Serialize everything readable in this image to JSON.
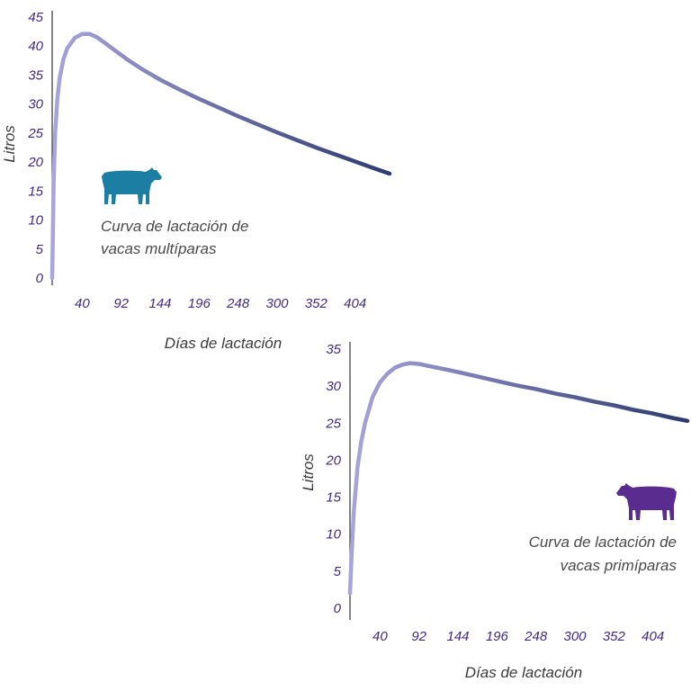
{
  "chart_data": [
    {
      "type": "line",
      "ylabel": "Litros",
      "xlabel": "Días de lactación",
      "y_ticks": [
        0,
        5,
        10,
        15,
        20,
        25,
        30,
        35,
        40,
        45
      ],
      "x_ticks": [
        40,
        92,
        144,
        196,
        248,
        300,
        352,
        404
      ],
      "ylim": [
        0,
        45
      ],
      "xlim": [
        0,
        450
      ],
      "grid": false,
      "annotation": [
        "Curva de lactación de",
        "vacas multíparas"
      ],
      "icon": "cow-icon",
      "icon_color": "#1d7ea3",
      "line_colors": [
        "#a8a4dc",
        "#2b3a6e"
      ],
      "series": [
        {
          "x": [
            0,
            2,
            4,
            7,
            10,
            15,
            20,
            30,
            40,
            50,
            60,
            70,
            80,
            100,
            120,
            144,
            170,
            196,
            222,
            248,
            274,
            300,
            326,
            352,
            378,
            404,
            430,
            450
          ],
          "y": [
            0,
            17,
            25,
            31,
            34.5,
            37.7,
            39.6,
            41.4,
            42.1,
            42.1,
            41.5,
            40.6,
            39.6,
            37.7,
            36.0,
            34.2,
            32.5,
            30.9,
            29.4,
            27.9,
            26.5,
            25.1,
            23.8,
            22.5,
            21.3,
            20.1,
            18.9,
            18.0
          ]
        }
      ]
    },
    {
      "type": "line",
      "ylabel": "Litros",
      "xlabel": "Días de lactación",
      "y_ticks": [
        0,
        5,
        10,
        15,
        20,
        25,
        30,
        35
      ],
      "x_ticks": [
        40,
        92,
        144,
        196,
        248,
        300,
        352,
        404
      ],
      "ylim": [
        0,
        35
      ],
      "xlim": [
        0,
        450
      ],
      "grid": false,
      "annotation": [
        "Curva de lactación de",
        "vacas primíparas"
      ],
      "icon": "cow-icon",
      "icon_color": "#5b2c8f",
      "line_colors": [
        "#a8a4dc",
        "#2b3a6e"
      ],
      "series": [
        {
          "x": [
            0,
            2,
            5,
            10,
            15,
            20,
            30,
            40,
            50,
            60,
            70,
            80,
            92,
            110,
            130,
            144,
            170,
            196,
            222,
            248,
            274,
            300,
            326,
            352,
            378,
            404,
            430,
            450
          ],
          "y": [
            2,
            7,
            13,
            19,
            22.5,
            25,
            28.5,
            30.5,
            31.7,
            32.5,
            32.9,
            33.1,
            33.0,
            32.6,
            32.2,
            31.9,
            31.3,
            30.7,
            30.1,
            29.6,
            29.0,
            28.5,
            27.9,
            27.4,
            26.8,
            26.3,
            25.7,
            25.3
          ]
        }
      ]
    }
  ]
}
